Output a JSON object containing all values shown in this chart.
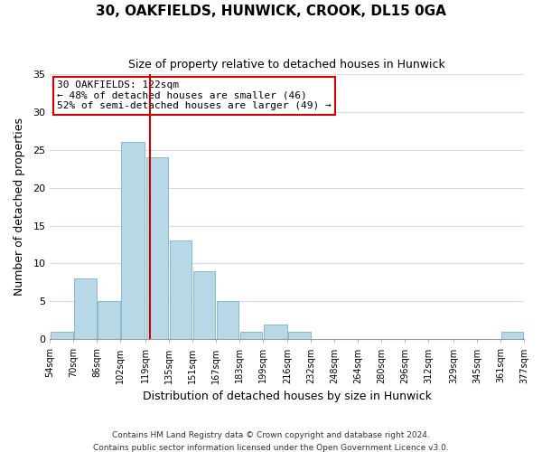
{
  "title": "30, OAKFIELDS, HUNWICK, CROOK, DL15 0GA",
  "subtitle": "Size of property relative to detached houses in Hunwick",
  "xlabel": "Distribution of detached houses by size in Hunwick",
  "ylabel": "Number of detached properties",
  "footnote1": "Contains HM Land Registry data © Crown copyright and database right 2024.",
  "footnote2": "Contains public sector information licensed under the Open Government Licence v3.0.",
  "bins": [
    54,
    70,
    86,
    102,
    119,
    135,
    151,
    167,
    183,
    199,
    216,
    232,
    248,
    264,
    280,
    296,
    312,
    329,
    345,
    361,
    377
  ],
  "bar_heights": [
    1,
    8,
    5,
    26,
    24,
    13,
    9,
    5,
    1,
    2,
    1,
    0,
    0,
    0,
    0,
    0,
    0,
    0,
    0,
    1
  ],
  "bar_color": "#b8d8e8",
  "bar_edgecolor": "#8ab8cc",
  "tick_labels": [
    "54sqm",
    "70sqm",
    "86sqm",
    "102sqm",
    "119sqm",
    "135sqm",
    "151sqm",
    "167sqm",
    "183sqm",
    "199sqm",
    "216sqm",
    "232sqm",
    "248sqm",
    "264sqm",
    "280sqm",
    "296sqm",
    "312sqm",
    "329sqm",
    "345sqm",
    "361sqm",
    "377sqm"
  ],
  "vline_x": 122,
  "vline_color": "#cc0000",
  "ylim": [
    0,
    35
  ],
  "yticks": [
    0,
    5,
    10,
    15,
    20,
    25,
    30,
    35
  ],
  "annotation_title": "30 OAKFIELDS: 122sqm",
  "annotation_line1": "← 48% of detached houses are smaller (46)",
  "annotation_line2": "52% of semi-detached houses are larger (49) →",
  "annotation_box_edgecolor": "#cc0000",
  "annotation_box_facecolor": "white",
  "grid_color": "#d0dce8",
  "background_color": "white",
  "plot_bg_color": "white"
}
